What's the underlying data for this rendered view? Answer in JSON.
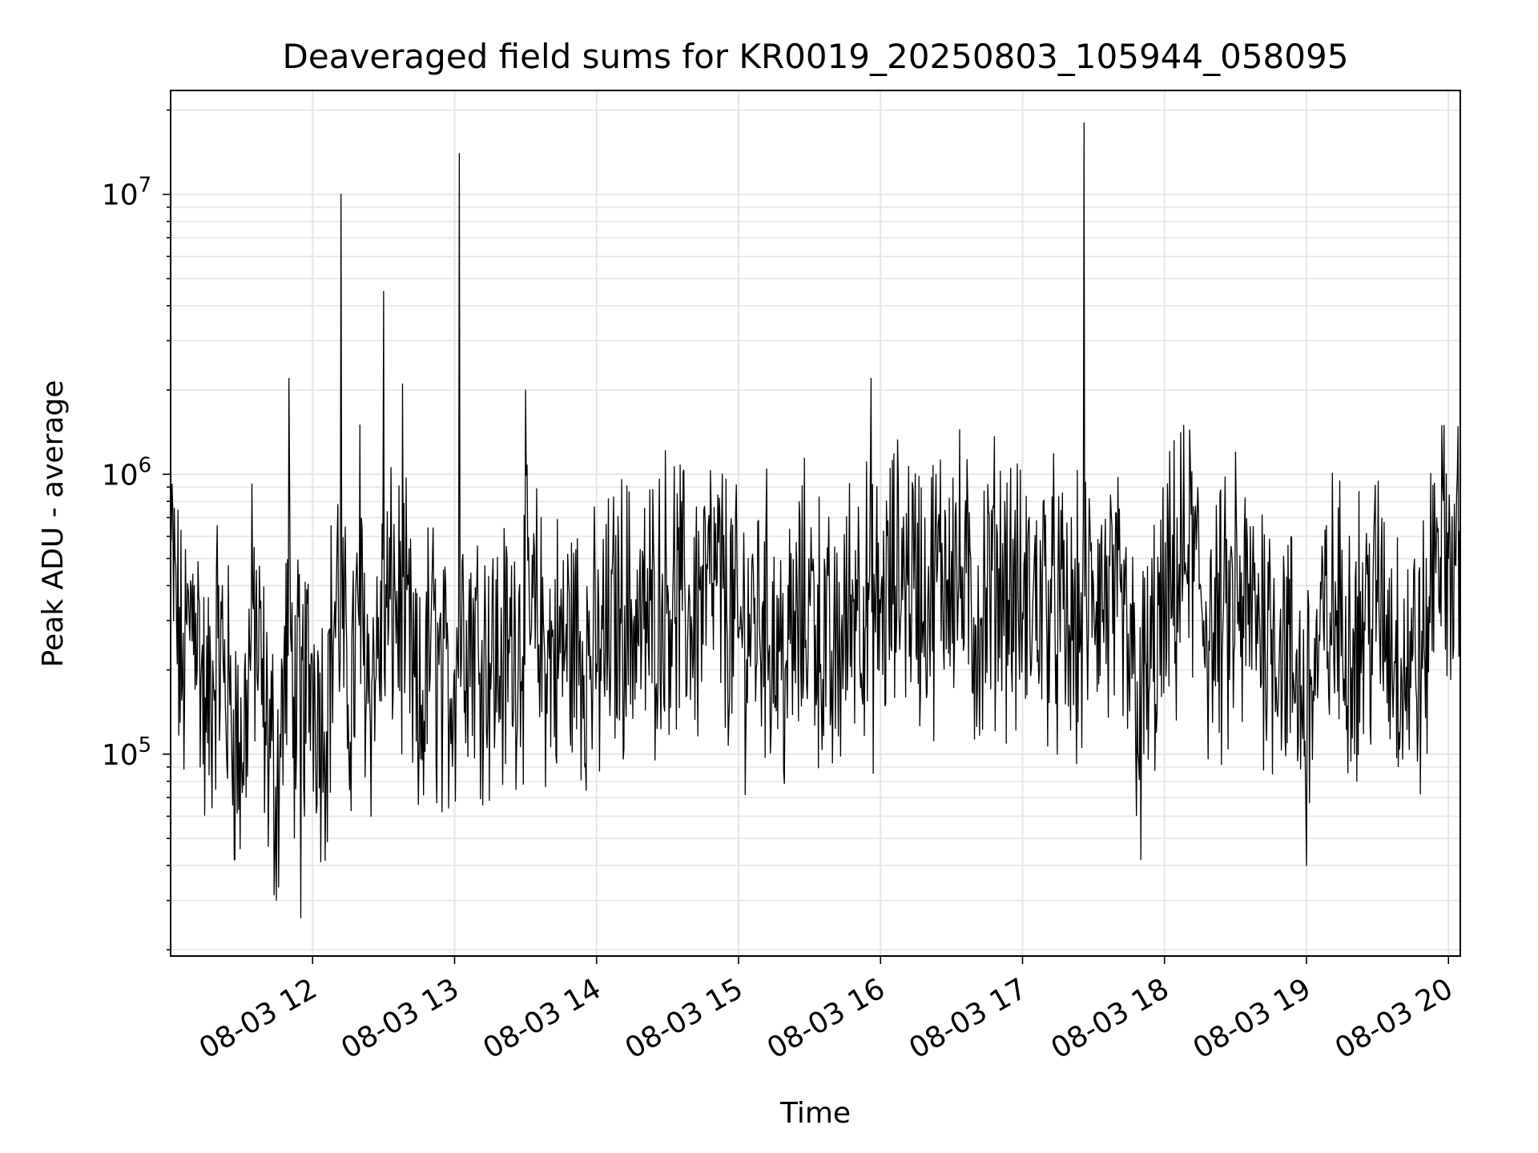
{
  "chart_data": {
    "type": "line",
    "title": "Deaveraged field sums for KR0019_20250803_105944_058095",
    "xlabel": "Time",
    "ylabel": "Peak ADU - average",
    "yscale": "log",
    "ylim": [
      19000,
      23500000
    ],
    "xlim": [
      "08-03 11:00",
      "08-03 20:05"
    ],
    "x_ticks": [
      "08-03 12",
      "08-03 13",
      "08-03 14",
      "08-03 15",
      "08-03 16",
      "08-03 17",
      "08-03 18",
      "08-03 19",
      "08-03 20"
    ],
    "y_ticks": [
      {
        "base": "10",
        "exp": "5",
        "value": 100000
      },
      {
        "base": "10",
        "exp": "6",
        "value": 1000000
      },
      {
        "base": "10",
        "exp": "7",
        "value": 10000000
      }
    ],
    "grid": true,
    "line_color": "#000000",
    "grid_color": "#e5e5e5",
    "series": [
      {
        "x": [
          "08-03 11:00",
          "08-03 11:05",
          "08-03 11:10",
          "08-03 11:15",
          "08-03 11:20",
          "08-03 11:25",
          "08-03 11:30",
          "08-03 11:35",
          "08-03 11:40",
          "08-03 11:45",
          "08-03 11:50",
          "08-03 11:52",
          "08-03 11:55",
          "08-03 12:00",
          "08-03 12:05",
          "08-03 12:10",
          "08-03 12:12",
          "08-03 12:15",
          "08-03 12:20",
          "08-03 12:25",
          "08-03 12:30",
          "08-03 12:35",
          "08-03 12:38",
          "08-03 12:42",
          "08-03 12:45",
          "08-03 12:50",
          "08-03 12:55",
          "08-03 13:00",
          "08-03 13:02",
          "08-03 13:05",
          "08-03 13:10",
          "08-03 13:20",
          "08-03 13:30",
          "08-03 13:35",
          "08-03 13:40",
          "08-03 13:50",
          "08-03 14:00",
          "08-03 14:10",
          "08-03 14:20",
          "08-03 14:30",
          "08-03 14:40",
          "08-03 14:50",
          "08-03 15:00",
          "08-03 15:10",
          "08-03 15:20",
          "08-03 15:30",
          "08-03 15:40",
          "08-03 15:50",
          "08-03 15:56",
          "08-03 16:00",
          "08-03 16:10",
          "08-03 16:20",
          "08-03 16:30",
          "08-03 16:40",
          "08-03 16:50",
          "08-03 17:00",
          "08-03 17:10",
          "08-03 17:20",
          "08-03 17:26",
          "08-03 17:30",
          "08-03 17:40",
          "08-03 17:50",
          "08-03 18:00",
          "08-03 18:10",
          "08-03 18:20",
          "08-03 18:30",
          "08-03 18:40",
          "08-03 18:50",
          "08-03 19:00",
          "08-03 19:10",
          "08-03 19:20",
          "08-03 19:30",
          "08-03 19:40",
          "08-03 19:50",
          "08-03 19:55",
          "08-03 20:00",
          "08-03 20:05"
        ],
        "y": [
          550000,
          180000,
          400000,
          120000,
          260000,
          150000,
          90000,
          330000,
          130000,
          75000,
          2200000,
          160000,
          26000,
          210000,
          120000,
          380000,
          10000000,
          150000,
          1500000,
          180000,
          4500000,
          350000,
          2100000,
          200000,
          110000,
          280000,
          150000,
          200000,
          14000000,
          300000,
          250000,
          210000,
          2000000,
          280000,
          220000,
          260000,
          210000,
          330000,
          280000,
          400000,
          310000,
          420000,
          260000,
          330000,
          210000,
          370000,
          190000,
          420000,
          2200000,
          320000,
          480000,
          360000,
          530000,
          290000,
          460000,
          320000,
          380000,
          260000,
          18000000,
          400000,
          310000,
          42000,
          300000,
          560000,
          260000,
          1200000,
          330000,
          250000,
          40000,
          320000,
          270000,
          350000,
          220000,
          210000,
          700000,
          500000,
          470000
        ]
      }
    ]
  }
}
